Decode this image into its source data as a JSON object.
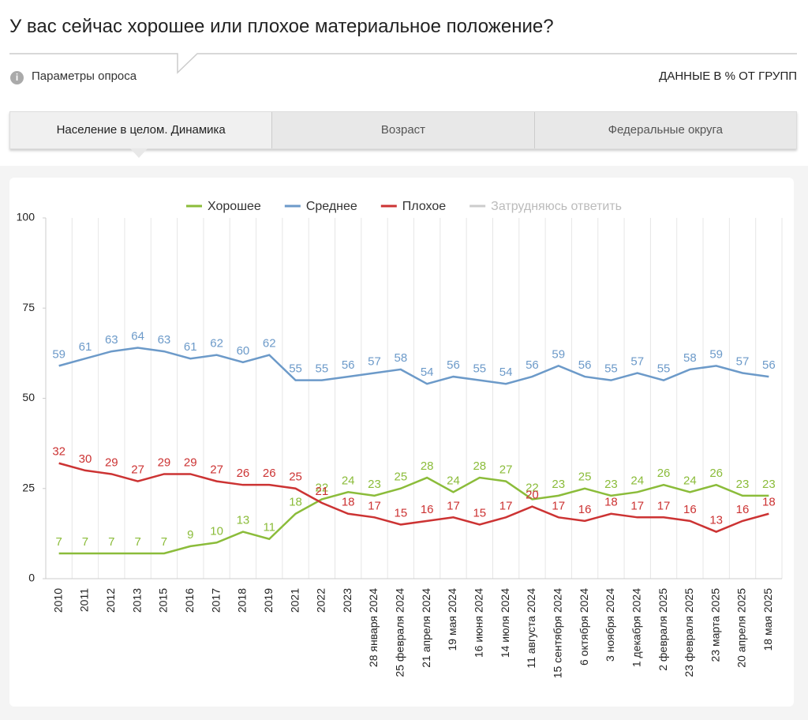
{
  "header": {
    "title": "У вас сейчас хорошее или плохое материальное положение?",
    "params": "Параметры опроса",
    "units": "ДАННЫЕ В % ОТ ГРУПП"
  },
  "tabs": [
    "Население в целом. Динамика",
    "Возраст",
    "Федеральные округа"
  ],
  "chart_data": {
    "type": "line",
    "categories": [
      "2010",
      "2011",
      "2012",
      "2013",
      "2015",
      "2016",
      "2017",
      "2018",
      "2019",
      "2021",
      "2022",
      "2023",
      "28 января 2024",
      "25 февраля 2024",
      "21 апреля 2024",
      "19 мая 2024",
      "16 июня 2024",
      "14 июля 2024",
      "11 августа 2024",
      "15 сентября 2024",
      "6 октября 2024",
      "3 ноября 2024",
      "1 декабря 2024",
      "2 февраля 2025",
      "23 февраля 2025",
      "23 марта 2025",
      "20 апреля 2025",
      "18 мая 2025"
    ],
    "series": [
      {
        "name": "Хорошее",
        "color": "#8bbc3a",
        "values": [
          7,
          7,
          7,
          7,
          7,
          9,
          10,
          13,
          11,
          18,
          22,
          24,
          23,
          25,
          28,
          24,
          28,
          27,
          22,
          23,
          25,
          23,
          24,
          26,
          24,
          26,
          23,
          23
        ]
      },
      {
        "name": "Среднее",
        "color": "#6c9ac9",
        "values": [
          59,
          61,
          63,
          64,
          63,
          61,
          62,
          60,
          62,
          55,
          55,
          56,
          57,
          58,
          54,
          56,
          55,
          54,
          56,
          59,
          56,
          55,
          57,
          55,
          58,
          59,
          57,
          56
        ]
      },
      {
        "name": "Плохое",
        "color": "#cc3333",
        "values": [
          32,
          30,
          29,
          27,
          29,
          29,
          27,
          26,
          26,
          25,
          21,
          18,
          17,
          15,
          16,
          17,
          15,
          17,
          20,
          17,
          16,
          18,
          17,
          17,
          16,
          13,
          16,
          18
        ]
      }
    ],
    "legend_hidden": [
      "Затрудняюсь ответить"
    ],
    "ylim": [
      0,
      100
    ],
    "yticks": [
      0,
      25,
      50,
      75,
      100
    ],
    "grid": true
  }
}
